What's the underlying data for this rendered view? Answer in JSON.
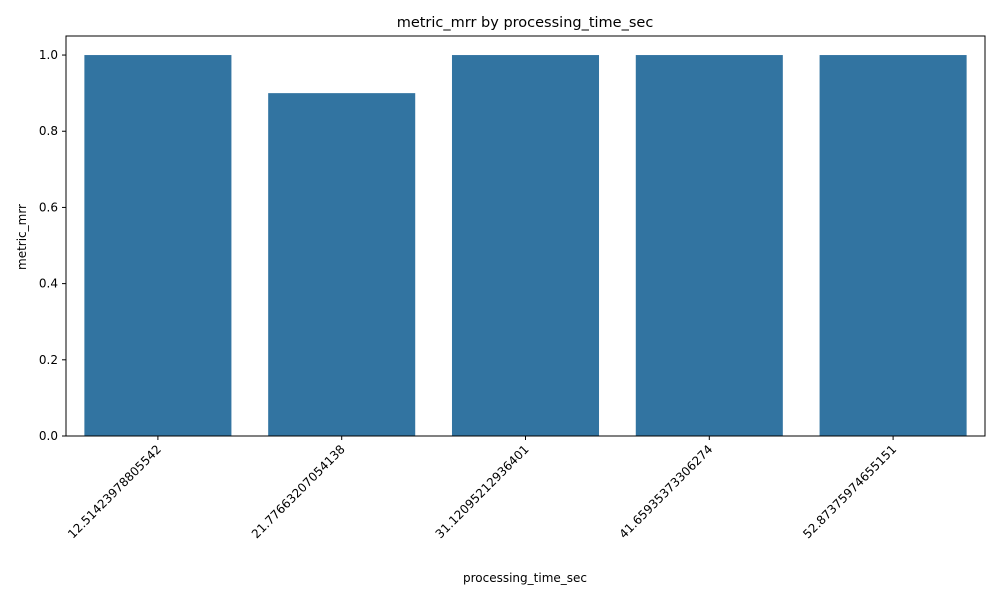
{
  "chart_data": {
    "type": "bar",
    "title": "metric_mrr by processing_time_sec",
    "xlabel": "processing_time_sec",
    "ylabel": "metric_mrr",
    "categories": [
      "12.51423978805542",
      "21.77663207054138",
      "31.12095212936401",
      "41.65935373306274",
      "52.87375974655151"
    ],
    "values": [
      1.0,
      0.9,
      1.0,
      1.0,
      1.0
    ],
    "ylim": [
      0,
      1.05
    ],
    "yticks": [
      0.0,
      0.2,
      0.4,
      0.6,
      0.8,
      1.0
    ],
    "ytick_labels": [
      "0.0",
      "0.2",
      "0.4",
      "0.6",
      "0.8",
      "1.0"
    ],
    "bar_color": "#3274a1",
    "grid": false,
    "legend": "none"
  }
}
